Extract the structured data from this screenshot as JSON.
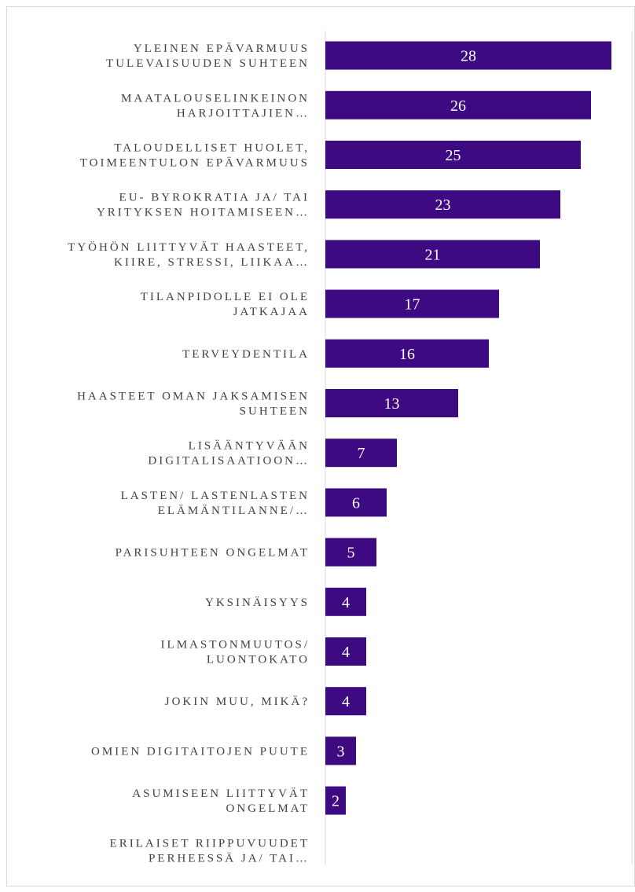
{
  "chart_data": {
    "type": "bar",
    "orientation": "horizontal",
    "categories": [
      [
        "YLEINEN EPÄVARMUUS",
        "TULEVAISUUDEN SUHTEEN"
      ],
      [
        "MAATALOUSELINKEINON",
        "HARJOITTAJIEN…"
      ],
      [
        "TALOUDELLISET HUOLET,",
        "TOIMEENTULON EPÄVARMUUS"
      ],
      [
        "EU- BYROKRATIA JA/ TAI",
        "YRITYKSEN HOITAMISEEN…"
      ],
      [
        "TYÖHÖN LIITTYVÄT HAASTEET,",
        "KIIRE, STRESSI, LIIKAA…"
      ],
      [
        "TILANPIDOLLE EI OLE",
        "JATKAJAA"
      ],
      [
        "TERVEYDENTILA"
      ],
      [
        "HAASTEET OMAN JAKSAMISEN",
        "SUHTEEN"
      ],
      [
        "LISÄÄNTYVÄÄN",
        "DIGITALISAATIOON…"
      ],
      [
        "LASTEN/ LASTENLASTEN",
        "ELÄMÄNTILANNE/…"
      ],
      [
        "PARISUHTEEN ONGELMAT"
      ],
      [
        "YKSINÄISYYS"
      ],
      [
        "ILMASTONMUUTOS/",
        "LUONTOKATO"
      ],
      [
        "JOKIN MUU, MIKÄ?"
      ],
      [
        "OMIEN DIGITAITOJEN PUUTE"
      ],
      [
        "ASUMISEEN LIITTYVÄT",
        "ONGELMAT"
      ],
      [
        "ERILAISET RIIPPUVUUDET",
        "PERHEESSÄ JA/ TAI…"
      ]
    ],
    "values": [
      28,
      26,
      25,
      23,
      21,
      17,
      16,
      13,
      7,
      6,
      5,
      4,
      4,
      4,
      3,
      2,
      null
    ],
    "data_labels": [
      "28",
      "26",
      "25",
      "23",
      "21",
      "17",
      "16",
      "13",
      "7",
      "6",
      "5",
      "4",
      "4",
      "4",
      "3",
      "2",
      ""
    ],
    "xlim": [
      0,
      30
    ],
    "grid": "vertical",
    "legend": "none",
    "title": "",
    "xlabel": "",
    "ylabel": "",
    "bar_color": "#3d0a82",
    "label_color": "#404040",
    "grid_color": "#d9d9d9"
  }
}
